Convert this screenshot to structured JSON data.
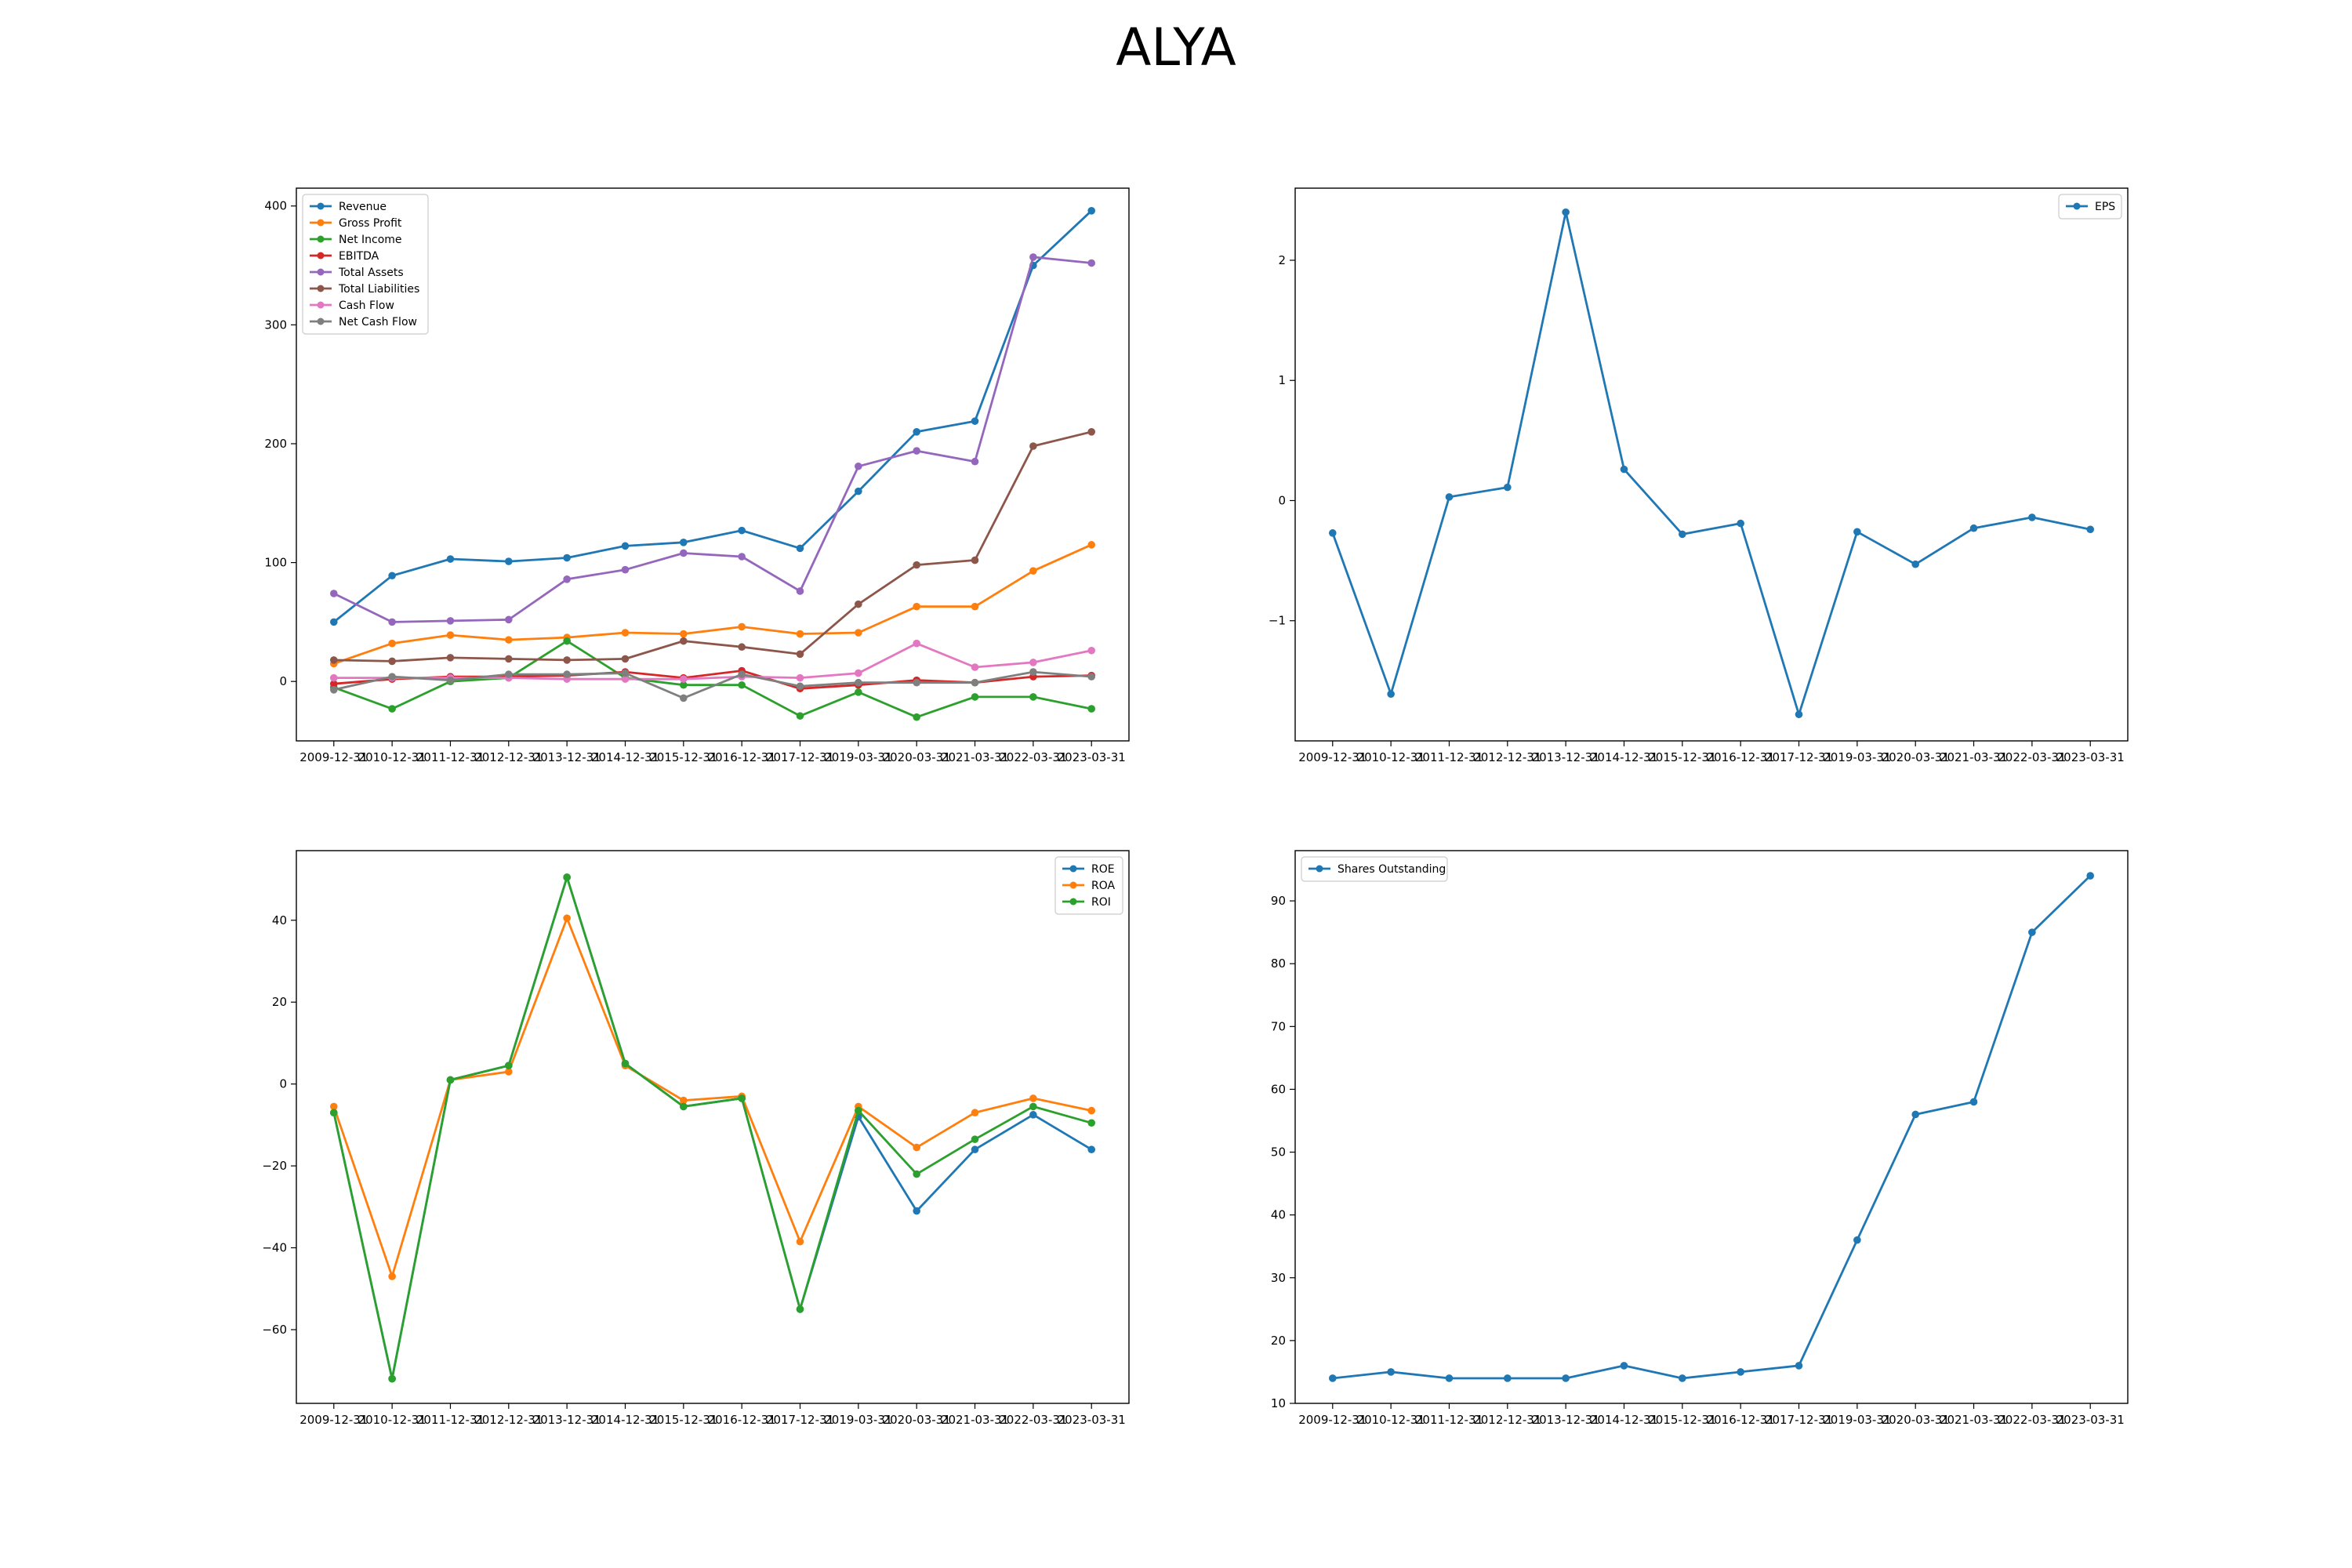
{
  "title": "ALYA",
  "x_labels": [
    "2009-12-31",
    "2010-12-31",
    "2011-12-31",
    "2012-12-31",
    "2013-12-31",
    "2014-12-31",
    "2015-12-31",
    "2016-12-31",
    "2017-12-31",
    "2019-03-31",
    "2020-03-31",
    "2021-03-31",
    "2022-03-31",
    "2023-03-31"
  ],
  "chart_data": [
    {
      "type": "line",
      "title": "",
      "xlabel": "",
      "ylabel": "",
      "ylim": [
        -50,
        415
      ],
      "yticks": [
        0,
        100,
        200,
        300,
        400
      ],
      "legend": "top-left",
      "grid": false,
      "series": [
        {
          "name": "Revenue",
          "color": "#1f77b4",
          "values": [
            50,
            89,
            103,
            101,
            104,
            114,
            117,
            127,
            112,
            160,
            210,
            219,
            350,
            396
          ]
        },
        {
          "name": "Gross Profit",
          "color": "#ff7f0e",
          "values": [
            15,
            32,
            39,
            35,
            37,
            41,
            40,
            46,
            40,
            41,
            63,
            63,
            93,
            115
          ]
        },
        {
          "name": "Net Income",
          "color": "#2ca02c",
          "values": [
            -5,
            -23,
            0,
            3,
            34,
            3,
            -3,
            -3,
            -29,
            -9,
            -30,
            -13,
            -13,
            -23
          ]
        },
        {
          "name": "EBITDA",
          "color": "#d62728",
          "values": [
            -2,
            2,
            4,
            4,
            5,
            8,
            3,
            9,
            -6,
            -3,
            1,
            -1,
            4,
            5
          ]
        },
        {
          "name": "Total Assets",
          "color": "#9467bd",
          "values": [
            74,
            50,
            51,
            52,
            86,
            94,
            108,
            105,
            76,
            181,
            194,
            185,
            357,
            352
          ]
        },
        {
          "name": "Total Liabilities",
          "color": "#8c564b",
          "values": [
            18,
            17,
            20,
            19,
            18,
            19,
            34,
            29,
            23,
            65,
            98,
            102,
            198,
            210
          ]
        },
        {
          "name": "Cash Flow",
          "color": "#e377c2",
          "values": [
            3,
            3,
            3,
            3,
            2,
            2,
            2,
            4,
            3,
            7,
            32,
            12,
            16,
            26
          ]
        },
        {
          "name": "Net Cash Flow",
          "color": "#7f7f7f",
          "values": [
            -7,
            4,
            1,
            6,
            6,
            7,
            -14,
            6,
            -4,
            -1,
            -1,
            -1,
            8,
            4
          ]
        }
      ]
    },
    {
      "type": "line",
      "title": "",
      "xlabel": "",
      "ylabel": "",
      "ylim": [
        -2.0,
        2.6
      ],
      "yticks": [
        -1,
        0,
        1,
        2
      ],
      "legend": "top-right",
      "grid": false,
      "series": [
        {
          "name": "EPS",
          "color": "#1f77b4",
          "values": [
            -0.27,
            -1.61,
            0.03,
            0.11,
            2.4,
            0.26,
            -0.28,
            -0.19,
            -1.78,
            -0.26,
            -0.53,
            -0.23,
            -0.14,
            -0.24
          ]
        }
      ]
    },
    {
      "type": "line",
      "title": "",
      "xlabel": "",
      "ylabel": "",
      "ylim": [
        -78,
        57
      ],
      "yticks": [
        -60,
        -40,
        -20,
        0,
        20,
        40
      ],
      "legend": "top-right",
      "grid": false,
      "series": [
        {
          "name": "ROE",
          "color": "#1f77b4",
          "values": [
            -7,
            -72,
            1,
            4.5,
            50.5,
            5,
            -5.5,
            -3.5,
            -55,
            -8,
            -31,
            -16,
            -7.5,
            -16
          ]
        },
        {
          "name": "ROA",
          "color": "#ff7f0e",
          "values": [
            -5.5,
            -47,
            1,
            3,
            40.5,
            4.5,
            -4,
            -3,
            -38.5,
            -5.5,
            -15.5,
            -7,
            -3.5,
            -6.5
          ]
        },
        {
          "name": "ROI",
          "color": "#2ca02c",
          "values": [
            -7,
            -72,
            1,
            4.5,
            50.5,
            5,
            -5.5,
            -3.5,
            -55,
            -6.5,
            -22,
            -13.5,
            -5.5,
            -9.5
          ]
        }
      ]
    },
    {
      "type": "line",
      "title": "",
      "xlabel": "",
      "ylabel": "",
      "ylim": [
        10,
        98
      ],
      "yticks": [
        10,
        20,
        30,
        40,
        50,
        60,
        70,
        80,
        90
      ],
      "legend": "top-left",
      "grid": false,
      "series": [
        {
          "name": "Shares Outstanding",
          "color": "#1f77b4",
          "values": [
            14,
            15,
            14,
            14,
            14,
            16,
            14,
            15,
            16,
            36,
            56,
            58,
            85,
            94
          ]
        }
      ]
    }
  ]
}
